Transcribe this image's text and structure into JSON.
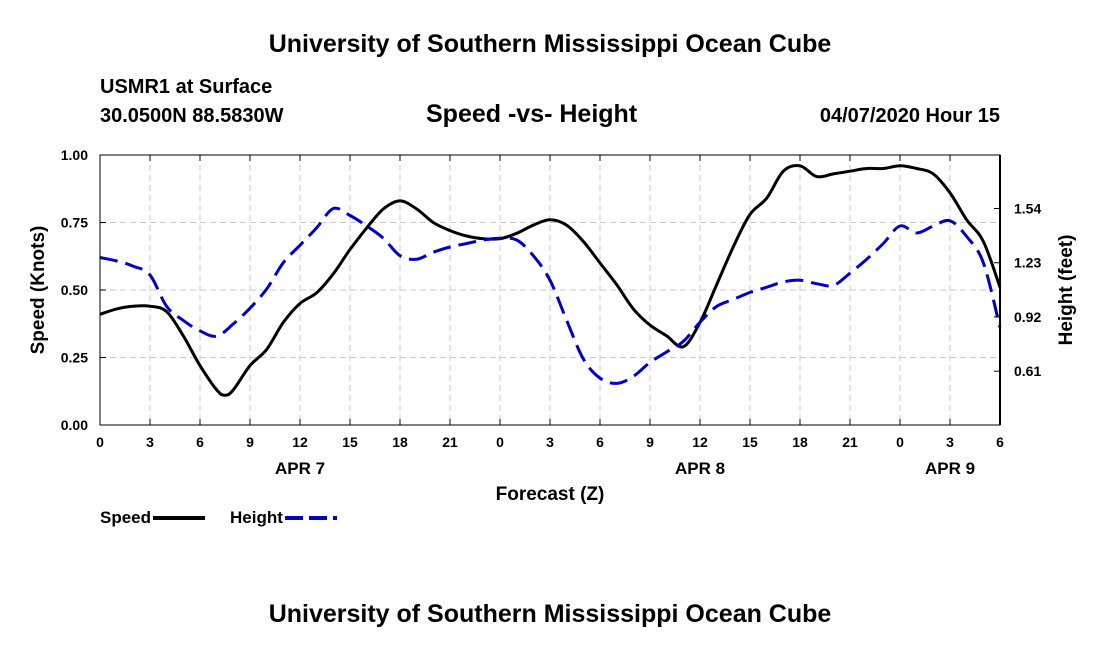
{
  "header": {
    "title_top": "University of Southern Mississippi Ocean Cube",
    "station": "USMR1 at Surface",
    "coords": "30.0500N 88.5830W",
    "chart_title": "Speed -vs- Height",
    "date_hour": "04/07/2020 Hour 15",
    "title_bottom": "University of Southern Mississippi Ocean Cube"
  },
  "legend": {
    "speed_label": "Speed",
    "height_label": "Height"
  },
  "colors": {
    "speed": "#000000",
    "height": "#0000cc",
    "grid": "#c8c8c8"
  },
  "chart_data": {
    "type": "line",
    "title": "Speed -vs- Height",
    "xlabel": "Forecast (Z)",
    "ylabel": "Speed (Knots)",
    "y2label": "Height (feet)",
    "xlim": [
      0,
      54
    ],
    "ylim": [
      0,
      1
    ],
    "y2lim": [
      0.302,
      1.846
    ],
    "x_ticks": [
      0,
      3,
      6,
      9,
      12,
      15,
      18,
      21,
      24,
      27,
      30,
      33,
      36,
      39,
      42,
      45,
      48,
      51,
      54
    ],
    "x_tick_labels": [
      "0",
      "3",
      "6",
      "9",
      "12",
      "15",
      "18",
      "21",
      "0",
      "3",
      "6",
      "9",
      "12",
      "15",
      "18",
      "21",
      "0",
      "3",
      "6"
    ],
    "day_labels": [
      {
        "x": 12,
        "label": "APR 7"
      },
      {
        "x": 36,
        "label": "APR 8"
      },
      {
        "x": 51,
        "label": "APR 9"
      }
    ],
    "y_ticks": [
      0,
      0.25,
      0.5,
      0.75,
      1.0
    ],
    "y_tick_labels": [
      "0.00",
      "0.25",
      "0.50",
      "0.75",
      "1.00"
    ],
    "y2_ticks": [
      0.61,
      0.92,
      1.23,
      1.54
    ],
    "y2_tick_labels": [
      "0.61",
      "0.92",
      "1.23",
      "1.54"
    ],
    "grid": true,
    "series": [
      {
        "name": "Speed",
        "axis": "left",
        "style": "solid",
        "x": [
          0,
          1,
          2,
          3,
          4,
          5,
          6,
          7,
          7.5,
          8,
          9,
          10,
          11,
          12,
          13,
          14,
          15,
          16,
          17,
          18,
          19,
          20,
          21,
          22,
          23,
          24,
          25,
          26,
          27,
          28,
          29,
          30,
          31,
          32,
          33,
          34,
          35,
          36,
          37,
          38,
          39,
          40,
          41,
          42,
          43,
          44,
          45,
          46,
          47,
          48,
          49,
          50,
          51,
          52,
          53,
          54
        ],
        "y": [
          0.41,
          0.43,
          0.44,
          0.44,
          0.42,
          0.33,
          0.22,
          0.13,
          0.11,
          0.13,
          0.22,
          0.28,
          0.38,
          0.45,
          0.49,
          0.56,
          0.65,
          0.73,
          0.8,
          0.83,
          0.8,
          0.75,
          0.72,
          0.7,
          0.69,
          0.69,
          0.71,
          0.74,
          0.76,
          0.74,
          0.68,
          0.6,
          0.52,
          0.43,
          0.37,
          0.33,
          0.29,
          0.38,
          0.52,
          0.66,
          0.78,
          0.84,
          0.94,
          0.96,
          0.92,
          0.93,
          0.94,
          0.95,
          0.95,
          0.96,
          0.95,
          0.93,
          0.86,
          0.76,
          0.68,
          0.51
        ]
      },
      {
        "name": "Height",
        "axis": "right",
        "style": "dashed",
        "x": [
          0,
          1,
          2,
          3,
          4,
          5,
          6,
          7,
          8,
          9,
          10,
          11,
          12,
          13,
          14,
          15,
          16,
          17,
          18,
          19,
          20,
          21,
          22,
          23,
          24,
          25,
          26,
          27,
          28,
          29,
          30,
          31,
          32,
          33,
          34,
          35,
          36,
          37,
          38,
          39,
          40,
          41,
          42,
          43,
          44,
          45,
          46,
          47,
          48,
          49,
          50,
          51,
          52,
          53,
          54
        ],
        "y": [
          1.26,
          1.24,
          1.21,
          1.16,
          0.98,
          0.9,
          0.84,
          0.81,
          0.88,
          0.97,
          1.08,
          1.23,
          1.33,
          1.43,
          1.54,
          1.5,
          1.44,
          1.37,
          1.27,
          1.25,
          1.29,
          1.32,
          1.34,
          1.36,
          1.37,
          1.36,
          1.27,
          1.13,
          0.9,
          0.68,
          0.57,
          0.54,
          0.58,
          0.66,
          0.72,
          0.78,
          0.89,
          0.98,
          1.02,
          1.06,
          1.09,
          1.12,
          1.13,
          1.11,
          1.1,
          1.17,
          1.25,
          1.34,
          1.44,
          1.4,
          1.44,
          1.47,
          1.38,
          1.23,
          0.86
        ]
      }
    ]
  }
}
